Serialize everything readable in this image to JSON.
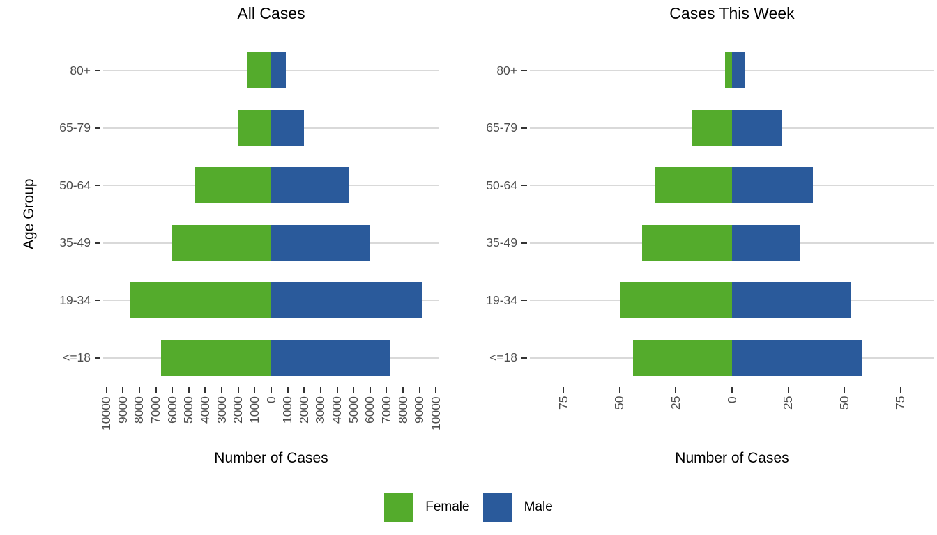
{
  "colors": {
    "female": "#54ab2c",
    "male": "#2a5a9b",
    "gridline": "#d9d9d9",
    "tick_text": "#4d4d4d",
    "tick_mark": "#333333",
    "background": "#ffffff"
  },
  "legend": {
    "items": [
      {
        "label": "Female",
        "color": "#54ab2c"
      },
      {
        "label": "Male",
        "color": "#2a5a9b"
      }
    ],
    "position": "bottom-center"
  },
  "chart_data": [
    {
      "type": "bar",
      "variant": "population-pyramid",
      "title": "All Cases",
      "xlabel": "Number of Cases",
      "ylabel": "Age Group",
      "grid": "horizontal",
      "categories": [
        "80+",
        "65-79",
        "50-64",
        "35-49",
        "19-34",
        "<=18"
      ],
      "series": [
        {
          "name": "Female",
          "color": "#54ab2c",
          "values": [
            1500,
            2000,
            4600,
            6000,
            8600,
            6700
          ]
        },
        {
          "name": "Male",
          "color": "#2a5a9b",
          "values": [
            900,
            2000,
            4700,
            6000,
            9200,
            7200
          ]
        }
      ],
      "x_tick_values": [
        -10000,
        -9000,
        -8000,
        -7000,
        -6000,
        -5000,
        -4000,
        -3000,
        -2000,
        -1000,
        0,
        1000,
        2000,
        3000,
        4000,
        5000,
        6000,
        7000,
        8000,
        9000,
        10000
      ],
      "x_tick_labels": [
        "10000",
        "9000",
        "8000",
        "7000",
        "6000",
        "5000",
        "4000",
        "3000",
        "2000",
        "1000",
        "0",
        "1000",
        "2000",
        "3000",
        "4000",
        "5000",
        "6000",
        "7000",
        "8000",
        "9000",
        "10000"
      ],
      "xlim": [
        -10200,
        10200
      ]
    },
    {
      "type": "bar",
      "variant": "population-pyramid",
      "title": "Cases This Week",
      "xlabel": "Number of Cases",
      "ylabel": "",
      "grid": "horizontal",
      "categories": [
        "80+",
        "65-79",
        "50-64",
        "35-49",
        "19-34",
        "<=18"
      ],
      "series": [
        {
          "name": "Female",
          "color": "#54ab2c",
          "values": [
            3,
            18,
            34,
            40,
            50,
            44
          ]
        },
        {
          "name": "Male",
          "color": "#2a5a9b",
          "values": [
            6,
            22,
            36,
            30,
            53,
            58
          ]
        }
      ],
      "x_tick_values": [
        -75,
        -50,
        -25,
        0,
        25,
        50,
        75
      ],
      "x_tick_labels": [
        "75",
        "50",
        "25",
        "0",
        "25",
        "50",
        "75"
      ],
      "xlim": [
        -90,
        90
      ]
    }
  ]
}
